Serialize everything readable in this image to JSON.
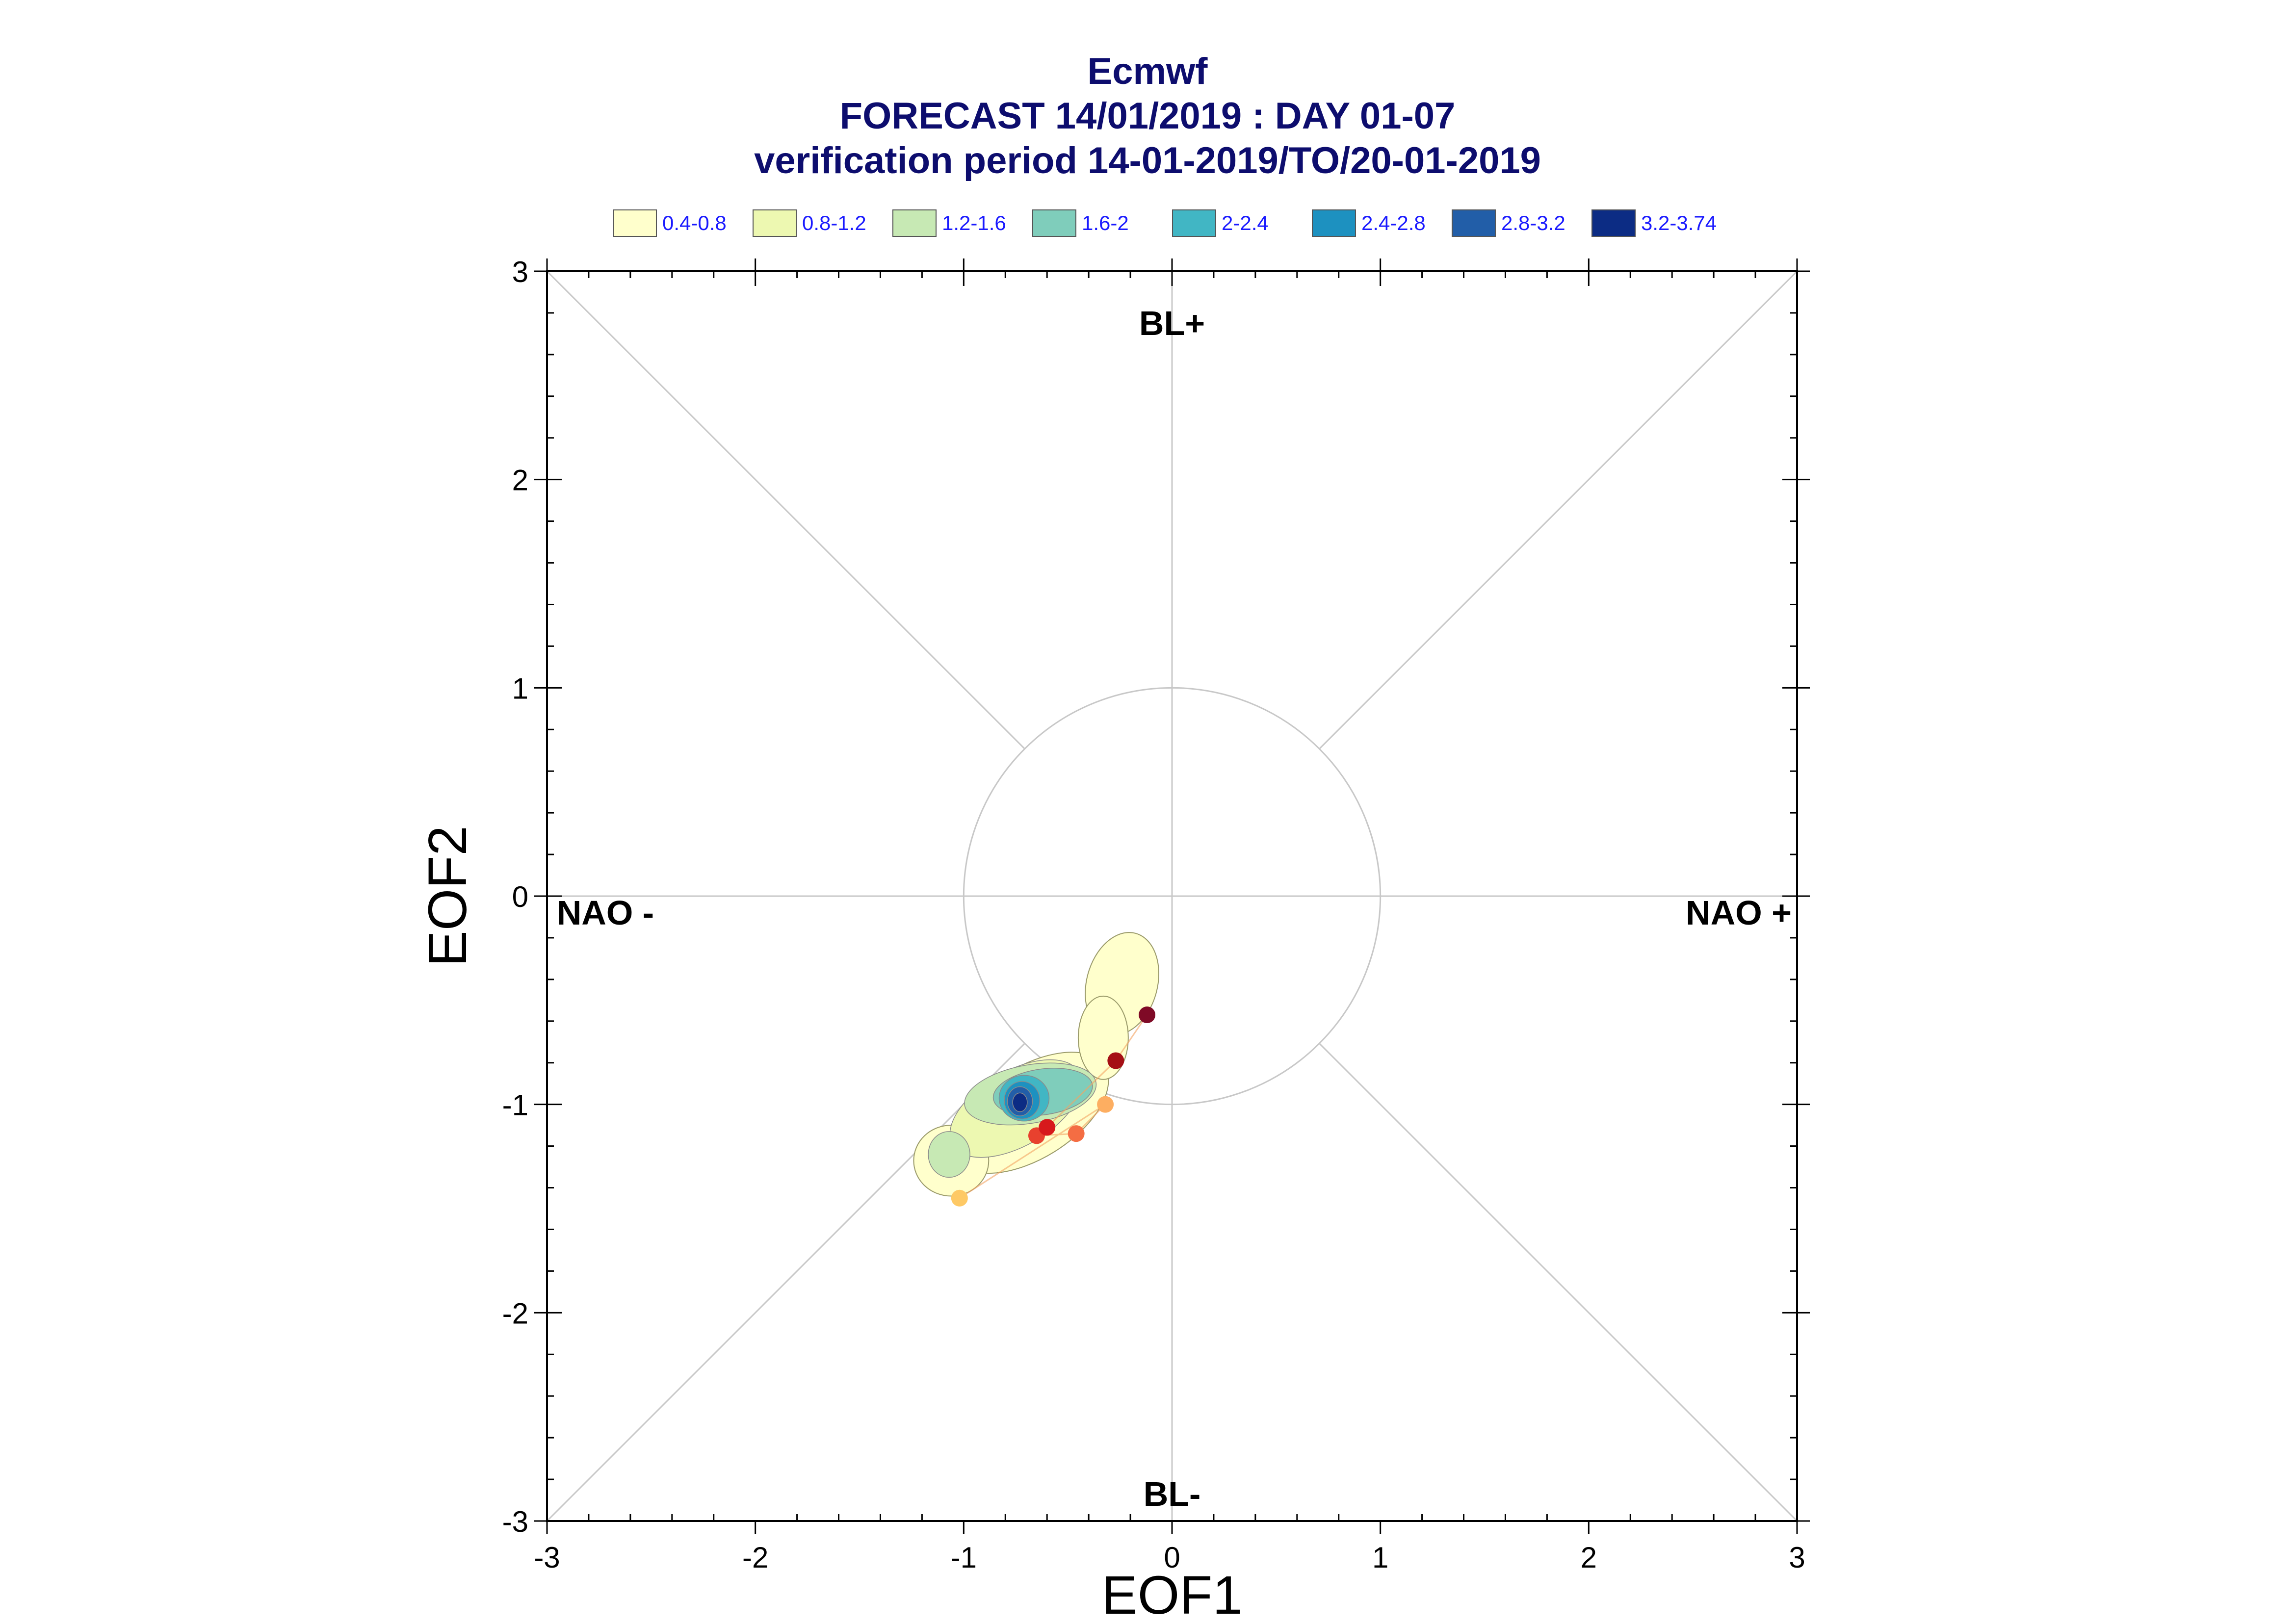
{
  "titles": {
    "line1": "Ecmwf",
    "line2": "FORECAST 14/01/2019 : DAY 01-07",
    "line3": "verification period 14-01-2019/TO/20-01-2019"
  },
  "legend": [
    {
      "label": "0.4-0.8",
      "color": "#ffffcc"
    },
    {
      "label": "0.8-1.2",
      "color": "#edf8b1"
    },
    {
      "label": "1.2-1.6",
      "color": "#c7e9b4"
    },
    {
      "label": "1.6-2",
      "color": "#7fcdbb"
    },
    {
      "label": "2-2.4",
      "color": "#41b6c4"
    },
    {
      "label": "2.4-2.8",
      "color": "#1d91c0"
    },
    {
      "label": "2.8-3.2",
      "color": "#225ea8"
    },
    {
      "label": "3.2-3.74",
      "color": "#0c2c84"
    }
  ],
  "chart_data": {
    "type": "scatter",
    "xlabel": "EOF1",
    "ylabel": "EOF2",
    "xlim": [
      -3,
      3
    ],
    "ylim": [
      -3,
      3
    ],
    "xticks": [
      "-3",
      "-2",
      "-1",
      "0",
      "1",
      "2",
      "3"
    ],
    "yticks": [
      "-3",
      "-2",
      "-1",
      "0",
      "1",
      "2",
      "3"
    ],
    "x_tick_values": [
      -3,
      -2,
      -1,
      0,
      1,
      2,
      3
    ],
    "y_tick_values": [
      -3,
      -2,
      -1,
      0,
      1,
      2,
      3
    ],
    "reference_circle_radius": 1,
    "region_labels": [
      {
        "text": "BL+",
        "x": 0,
        "y": 2.75
      },
      {
        "text": "BL-",
        "x": 0,
        "y": -2.87
      },
      {
        "text": "NAO -",
        "x": -2.72,
        "y": -0.08
      },
      {
        "text": "NAO +",
        "x": 2.72,
        "y": -0.08
      }
    ],
    "trajectory_points": [
      {
        "day": 1,
        "x": -1.02,
        "y": -1.45,
        "color": "#fec965"
      },
      {
        "day": 2,
        "x": -0.32,
        "y": -1.0,
        "color": "#fdae61"
      },
      {
        "day": 3,
        "x": -0.46,
        "y": -1.14,
        "color": "#f46d43"
      },
      {
        "day": 4,
        "x": -0.65,
        "y": -1.15,
        "color": "#e8412e"
      },
      {
        "day": 5,
        "x": -0.6,
        "y": -1.11,
        "color": "#d7191c"
      },
      {
        "day": 6,
        "x": -0.27,
        "y": -0.79,
        "color": "#a50f15"
      },
      {
        "day": 7,
        "x": -0.12,
        "y": -0.57,
        "color": "#7f0a26"
      }
    ],
    "density_peak": {
      "x": -0.73,
      "y": -0.99,
      "max": 3.74
    }
  }
}
